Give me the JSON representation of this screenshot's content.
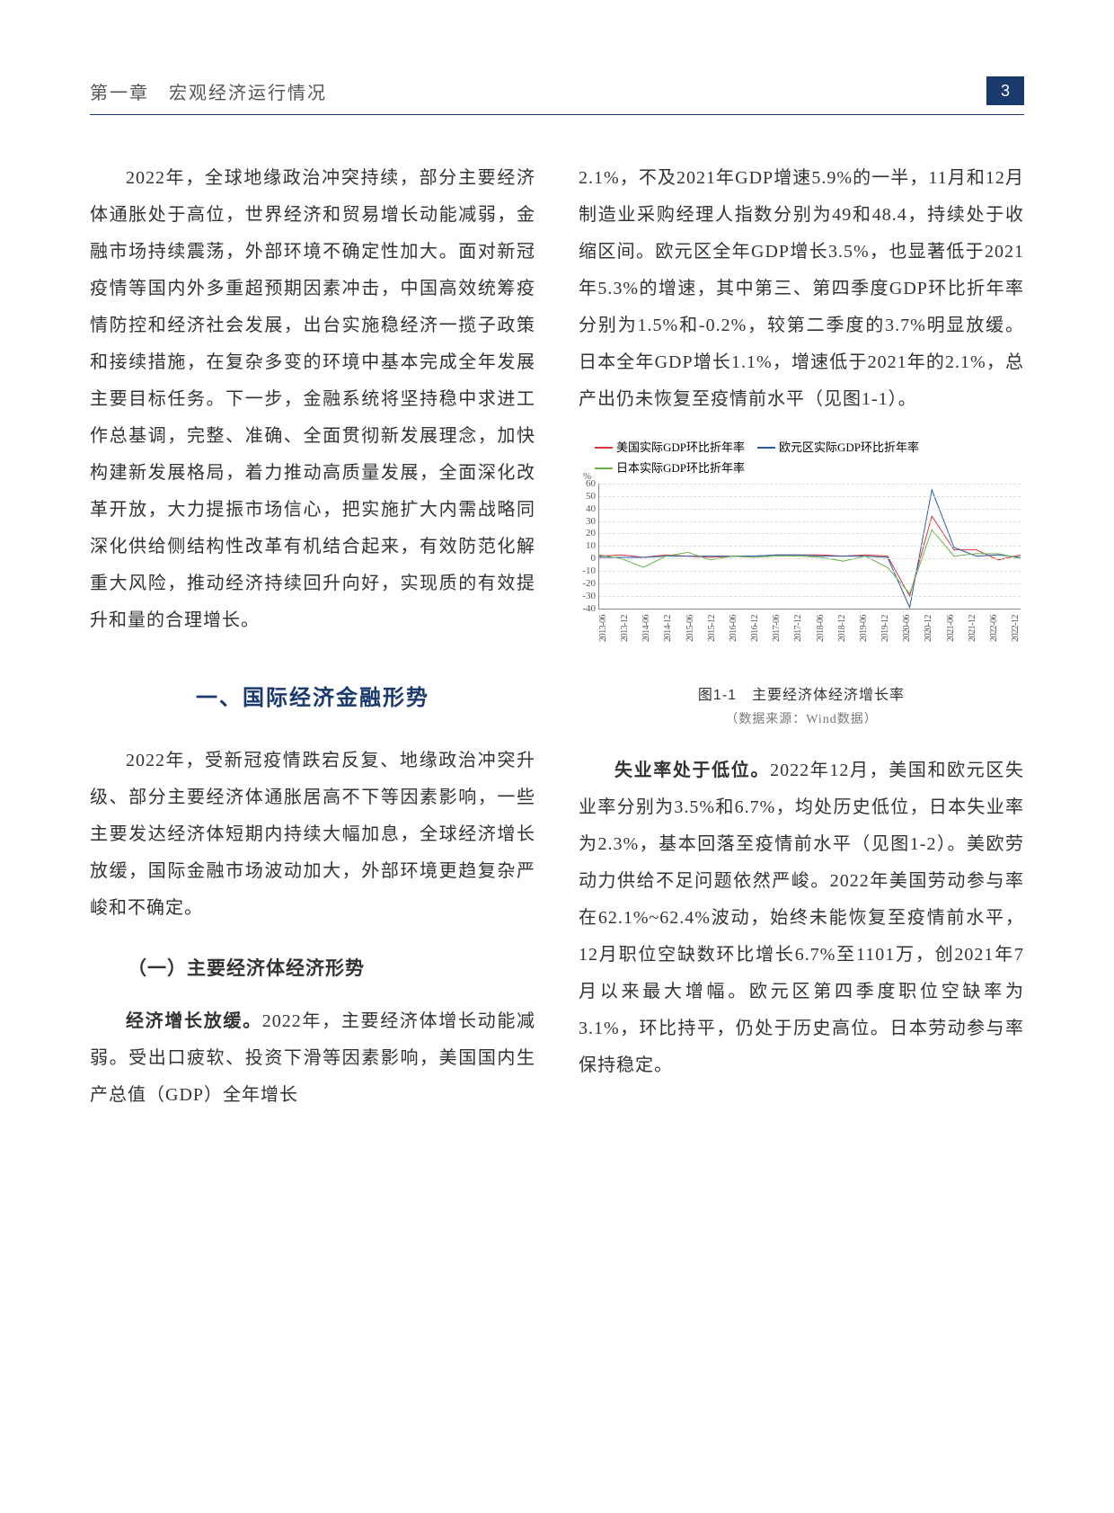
{
  "header": {
    "chapter_title": "第一章　宏观经济运行情况",
    "page_number": "3"
  },
  "left_column": {
    "paragraph_1": "2022年，全球地缘政治冲突持续，部分主要经济体通胀处于高位，世界经济和贸易增长动能减弱，金融市场持续震荡，外部环境不确定性加大。面对新冠疫情等国内外多重超预期因素冲击，中国高效统筹疫情防控和经济社会发展，出台实施稳经济一揽子政策和接续措施，在复杂多变的环境中基本完成全年发展主要目标任务。下一步，金融系统将坚持稳中求进工作总基调，完整、准确、全面贯彻新发展理念，加快构建新发展格局，着力推动高质量发展，全面深化改革开放，大力提振市场信心，把实施扩大内需战略同深化供给侧结构性改革有机结合起来，有效防范化解重大风险，推动经济持续回升向好，实现质的有效提升和量的合理增长。",
    "section_1_heading": "一、国际经济金融形势",
    "paragraph_2": "2022年，受新冠疫情跌宕反复、地缘政治冲突升级、部分主要经济体通胀居高不下等因素影响，一些主要发达经济体短期内持续大幅加息，全球经济增长放缓，国际金融市场波动加大，外部环境更趋复杂严峻和不确定。",
    "subsection_1_heading": "（一）主要经济体经济形势",
    "paragraph_3_bold": "经济增长放缓。",
    "paragraph_3_rest": "2022年，主要经济体增长动能减弱。受出口疲软、投资下滑等因素影响，美国国内生产总值（GDP）全年增长"
  },
  "right_column": {
    "paragraph_1": "2.1%，不及2021年GDP增速5.9%的一半，11月和12月制造业采购经理人指数分别为49和48.4，持续处于收缩区间。欧元区全年GDP增长3.5%，也显著低于2021年5.3%的增速，其中第三、第四季度GDP环比折年率分别为1.5%和-0.2%，较第二季度的3.7%明显放缓。日本全年GDP增长1.1%，增速低于2021年的2.1%，总产出仍未恢复至疫情前水平（见图1-1）。",
    "paragraph_2_bold": "失业率处于低位。",
    "paragraph_2_rest": "2022年12月，美国和欧元区失业率分别为3.5%和6.7%，均处历史低位，日本失业率为2.3%，基本回落至疫情前水平（见图1-2）。美欧劳动力供给不足问题依然严峻。2022年美国劳动参与率在62.1%~62.4%波动，始终未能恢复至疫情前水平，12月职位空缺数环比增长6.7%至1101万，创2021年7月以来最大增幅。欧元区第四季度职位空缺率为3.1%，环比持平，仍处于历史高位。日本劳动参与率保持稳定。"
  },
  "chart": {
    "type": "line",
    "y_unit": "%",
    "y_ticks": [
      60,
      50,
      40,
      30,
      20,
      10,
      0,
      -10,
      -20,
      -30,
      -40
    ],
    "ylim": [
      -40,
      60
    ],
    "x_labels": [
      "2013-06",
      "2013-12",
      "2014-06",
      "2014-12",
      "2015-06",
      "2015-12",
      "2016-06",
      "2016-12",
      "2017-06",
      "2017-12",
      "2018-06",
      "2018-12",
      "2019-06",
      "2019-12",
      "2020-06",
      "2020-12",
      "2021-06",
      "2021-12",
      "2022-06",
      "2022-12"
    ],
    "series": [
      {
        "name": "美国实际GDP环比折年率",
        "color": "#d43838",
        "values": [
          2,
          3,
          1,
          3,
          2,
          1,
          2,
          2,
          3,
          3,
          3,
          2,
          3,
          2,
          -30,
          34,
          7,
          7,
          -1,
          3
        ]
      },
      {
        "name": "欧元区实际GDP环比折年率",
        "color": "#2a5ca8",
        "values": [
          1,
          1,
          1,
          2,
          2,
          2,
          2,
          2,
          3,
          3,
          2,
          2,
          2,
          1,
          -39,
          55,
          9,
          2,
          3,
          1
        ]
      },
      {
        "name": "日本实际GDP环比折年率",
        "color": "#6ab04c",
        "values": [
          3,
          0,
          -7,
          2,
          5,
          -1,
          2,
          1,
          2,
          2,
          1,
          -2,
          2,
          -7,
          -28,
          23,
          2,
          4,
          4,
          0
        ]
      }
    ],
    "caption": "图1-1　主要经济体经济增长率",
    "source": "（数据来源：Wind数据）",
    "grid_color": "#dddddd",
    "axis_color": "#888888",
    "label_fontsize": 11,
    "background_color": "#ffffff"
  }
}
